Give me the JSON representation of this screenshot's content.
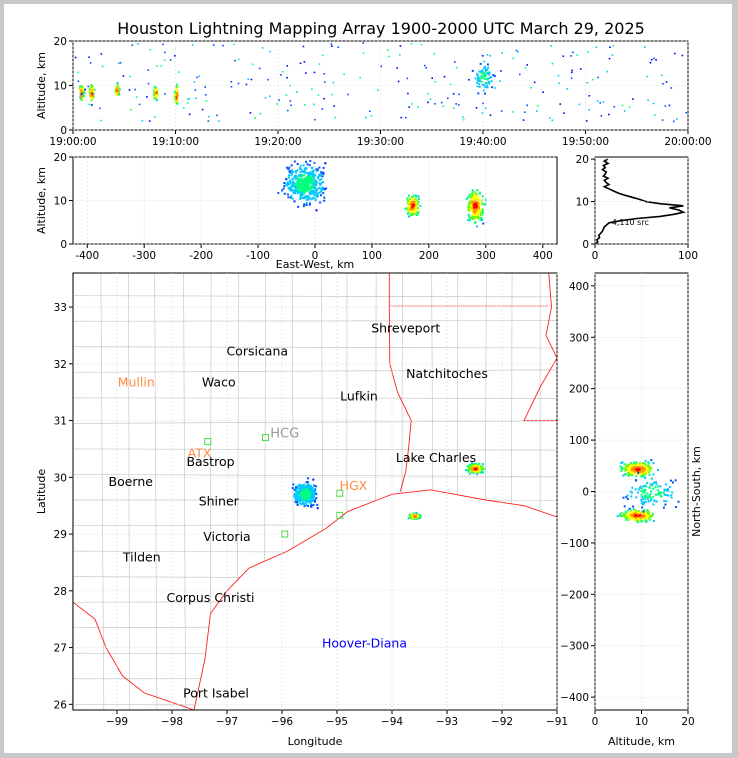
{
  "title": "Houston Lightning Mapping Array 1900-2000 UTC March 29, 2025",
  "colors": {
    "frame_bg": "#c8c8c8",
    "state_border": "#ff2020",
    "county_border": "#c8c8c8",
    "coast": "#ff2020",
    "city_label": "#000000",
    "orange_label": "#ff8c40",
    "radar_label": "#0000ff",
    "station_square": "#44dd44"
  },
  "chart_data": [
    {
      "id": "time-height",
      "type": "scatter",
      "title": "",
      "xlabel": "",
      "ylabel": "Altitude, km",
      "x_ticks": [
        "19:00:00",
        "19:10:00",
        "19:20:00",
        "19:30:00",
        "19:40:00",
        "19:50:00",
        "20:00:00"
      ],
      "y_ticks": [
        "0",
        "10",
        "20"
      ],
      "xlim": [
        "19:00:00",
        "20:00:00"
      ],
      "ylim": [
        0,
        20
      ],
      "series": [
        {
          "clusters": [
            {
              "x": "19:00:45",
              "y": 8.5,
              "spread_min": 0.5,
              "spread_km": 4,
              "hot": true
            },
            {
              "x": "19:01:45",
              "y": 8.5,
              "spread_min": 0.5,
              "spread_km": 4,
              "hot": true
            },
            {
              "x": "19:04:15",
              "y": 9,
              "spread_min": 0.4,
              "spread_km": 3,
              "hot": true
            },
            {
              "x": "19:08:00",
              "y": 8.5,
              "spread_min": 0.4,
              "spread_km": 3,
              "hot": true
            },
            {
              "x": "19:10:00",
              "y": 8,
              "spread_min": 0.4,
              "spread_km": 5,
              "hot": true
            },
            {
              "x": "19:40:00",
              "y": 12,
              "spread_min": 2,
              "spread_km": 7,
              "hot": false
            }
          ]
        }
      ]
    },
    {
      "id": "ew-height",
      "type": "scatter",
      "title": "",
      "xlabel": "East-West, km",
      "ylabel": "Altitude, km",
      "x_ticks": [
        "-400",
        "-300",
        "-200",
        "-100",
        "0",
        "100",
        "200",
        "300",
        "400"
      ],
      "y_ticks": [
        "0",
        "10",
        "20"
      ],
      "xlim": [
        -425,
        425
      ],
      "ylim": [
        0,
        20
      ],
      "series": [
        {
          "clusters": [
            {
              "x": -20,
              "y": 14,
              "sx": 30,
              "sy": 4,
              "n": 450,
              "hot": false
            },
            {
              "x": 170,
              "y": 9,
              "sx": 10,
              "sy": 2,
              "n": 160,
              "hot": true
            },
            {
              "x": 280,
              "y": 9,
              "sx": 12,
              "sy": 3,
              "n": 240,
              "hot": true
            }
          ]
        }
      ]
    },
    {
      "id": "altitude-histogram",
      "type": "line",
      "title": "",
      "xlabel": "",
      "ylabel": "",
      "x_ticks": [
        "0",
        "100"
      ],
      "y_ticks": [
        "0",
        "10",
        "20"
      ],
      "xlim": [
        0,
        100
      ],
      "ylim": [
        0,
        20.5
      ],
      "annotation": "4,110 src",
      "series": [
        {
          "points": [
            [
              0,
              0
            ],
            [
              3,
              0.5
            ],
            [
              2,
              1
            ],
            [
              5,
              1.5
            ],
            [
              4,
              2
            ],
            [
              8,
              3
            ],
            [
              10,
              4
            ],
            [
              15,
              5
            ],
            [
              28,
              5.5
            ],
            [
              45,
              6
            ],
            [
              70,
              6.5
            ],
            [
              85,
              7
            ],
            [
              95,
              7.5
            ],
            [
              90,
              8
            ],
            [
              80,
              8.5
            ],
            [
              95,
              9
            ],
            [
              70,
              9.5
            ],
            [
              55,
              10
            ],
            [
              48,
              10.5
            ],
            [
              40,
              11
            ],
            [
              32,
              11.5
            ],
            [
              25,
              12
            ],
            [
              20,
              12.5
            ],
            [
              15,
              13
            ],
            [
              10,
              13.5
            ],
            [
              15,
              14
            ],
            [
              12,
              14.5
            ],
            [
              10,
              15
            ],
            [
              14,
              15.5
            ],
            [
              9,
              16
            ],
            [
              11,
              16.5
            ],
            [
              12,
              17
            ],
            [
              8,
              17.5
            ],
            [
              11,
              18
            ],
            [
              9,
              18.5
            ],
            [
              14,
              19
            ],
            [
              10,
              19.5
            ],
            [
              14,
              20
            ]
          ]
        }
      ]
    },
    {
      "id": "plan-view",
      "type": "scatter",
      "title": "",
      "xlabel": "Longitude",
      "ylabel": "Latitude",
      "x_ticks": [
        "−99",
        "−98",
        "−97",
        "−96",
        "−95",
        "−94",
        "−93",
        "−92",
        "−91"
      ],
      "y_ticks": [
        "26",
        "27",
        "28",
        "29",
        "30",
        "31",
        "32",
        "33"
      ],
      "xlim": [
        -99.8,
        -91
      ],
      "ylim": [
        25.9,
        33.6
      ],
      "series": [
        {
          "clusters": [
            {
              "x": -95.6,
              "y": 29.72,
              "sx": 0.18,
              "sy": 0.18,
              "n": 380,
              "hot": false
            },
            {
              "x": -93.6,
              "y": 29.33,
              "sx": 0.09,
              "sy": 0.04,
              "n": 120,
              "hot": true
            },
            {
              "x": -92.5,
              "y": 30.17,
              "sx": 0.12,
              "sy": 0.07,
              "n": 220,
              "hot": true
            }
          ]
        }
      ],
      "cities": [
        {
          "name": "Shreveport",
          "lon": -93.75,
          "lat": 32.55
        },
        {
          "name": "Corsicana",
          "lon": -96.45,
          "lat": 32.15
        },
        {
          "name": "Natchitoches",
          "lon": -93.0,
          "lat": 31.75
        },
        {
          "name": "Waco",
          "lon": -97.15,
          "lat": 31.6
        },
        {
          "name": "Lufkin",
          "lon": -94.6,
          "lat": 31.35
        },
        {
          "name": "Bastrop",
          "lon": -97.3,
          "lat": 30.2
        },
        {
          "name": "Lake Charles",
          "lon": -93.2,
          "lat": 30.27
        },
        {
          "name": "Boerne",
          "lon": -98.75,
          "lat": 29.85
        },
        {
          "name": "Shiner",
          "lon": -97.15,
          "lat": 29.5
        },
        {
          "name": "Victoria",
          "lon": -97.0,
          "lat": 28.88
        },
        {
          "name": "Tilden",
          "lon": -98.55,
          "lat": 28.52
        },
        {
          "name": "Corpus Christi",
          "lon": -97.3,
          "lat": 27.8
        },
        {
          "name": "Port Isabel",
          "lon": -97.2,
          "lat": 26.12
        }
      ],
      "orange_labels": [
        {
          "name": "Mullin",
          "lon": -98.65,
          "lat": 31.6
        },
        {
          "name": "ATX",
          "lon": -97.5,
          "lat": 30.35
        },
        {
          "name": "HGX",
          "lon": -94.7,
          "lat": 29.78
        }
      ],
      "dim_labels": [
        {
          "name": "HCG",
          "lon": -95.95,
          "lat": 30.7
        }
      ],
      "radar_labels": [
        {
          "name": "Hoover-Diana",
          "lon": -94.5,
          "lat": 27.0
        }
      ],
      "stations": [
        {
          "lon": -97.35,
          "lat": 30.63
        },
        {
          "lon": -96.3,
          "lat": 30.7
        },
        {
          "lon": -94.95,
          "lat": 29.72
        },
        {
          "lon": -94.95,
          "lat": 29.33
        },
        {
          "lon": -95.95,
          "lat": 29.0
        }
      ]
    },
    {
      "id": "ns-height",
      "type": "scatter",
      "title": "",
      "xlabel": "Altitude, km",
      "ylabel": "North-South, km",
      "x_ticks": [
        "0",
        "10",
        "20"
      ],
      "y_ticks": [
        "−400",
        "−300",
        "−200",
        "−100",
        "0",
        "100",
        "200",
        "300",
        "400"
      ],
      "xlim": [
        0,
        20
      ],
      "ylim": [
        -425,
        425
      ],
      "series": [
        {
          "clusters": [
            {
              "x": 9,
              "y": 45,
              "sx": 3,
              "sy": 12,
              "n": 260,
              "hot": true
            },
            {
              "x": 9,
              "y": -45,
              "sx": 3,
              "sy": 10,
              "n": 260,
              "hot": true
            },
            {
              "x": 12,
              "y": 0,
              "sx": 5,
              "sy": 25,
              "n": 120,
              "hot": false
            }
          ]
        }
      ]
    }
  ]
}
